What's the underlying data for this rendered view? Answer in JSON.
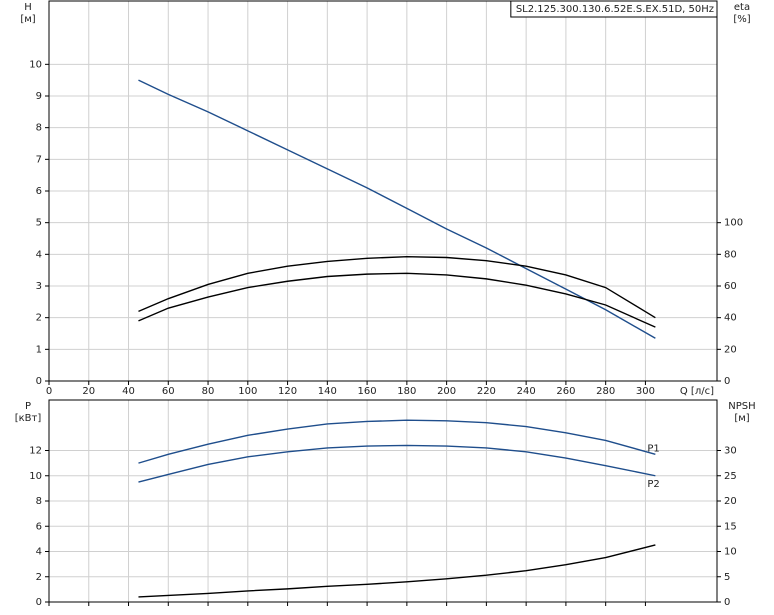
{
  "chart_data": [
    {
      "type": "line",
      "title": "SL2.125.300.130.6.52E.S.EX.51D, 50Hz",
      "ylabel": "H",
      "ylabel_unit": "[м]",
      "y2label": "eta",
      "y2label_unit": "[%]",
      "xlabel": "Q [л/с]",
      "xlim": [
        0,
        336
      ],
      "xticks": [
        0,
        20,
        40,
        60,
        80,
        100,
        120,
        140,
        160,
        180,
        200,
        220,
        240,
        260,
        280,
        300
      ],
      "ylim": [
        0,
        12
      ],
      "yticks": [
        0,
        1,
        2,
        3,
        4,
        5,
        6,
        7,
        8,
        9,
        10
      ],
      "y2lim": [
        0,
        240
      ],
      "y2ticks": [
        0,
        20,
        40,
        60,
        80,
        100
      ],
      "grid": true,
      "x": [
        45,
        60,
        80,
        100,
        120,
        140,
        160,
        180,
        200,
        220,
        240,
        260,
        280,
        305
      ],
      "series": [
        {
          "color": "#1f4e8c",
          "values": [
            9.5,
            9.05,
            8.5,
            7.9,
            7.3,
            6.7,
            6.1,
            5.45,
            4.8,
            4.2,
            3.55,
            2.9,
            2.25,
            1.35
          ]
        },
        {
          "color": "#000000",
          "axis": "y2",
          "values": [
            44,
            52,
            61,
            68,
            72.5,
            75.5,
            77.5,
            78.5,
            78,
            76,
            72.5,
            67,
            59,
            40
          ]
        },
        {
          "color": "#000000",
          "axis": "y2",
          "values": [
            38,
            46,
            53,
            59,
            63,
            66,
            67.5,
            68,
            67,
            64.5,
            60.5,
            55,
            48,
            34
          ]
        }
      ]
    },
    {
      "type": "line",
      "ylabel": "P",
      "ylabel_unit": "[кВт]",
      "y2label": "NPSH",
      "y2label_unit": "[м]",
      "xlim": [
        0,
        336
      ],
      "ylim": [
        0,
        16
      ],
      "yticks": [
        0,
        2,
        4,
        6,
        8,
        10,
        12
      ],
      "y2lim": [
        0,
        40
      ],
      "y2ticks": [
        0,
        5,
        10,
        15,
        20,
        25,
        30
      ],
      "grid": true,
      "x": [
        45,
        60,
        80,
        100,
        120,
        140,
        160,
        180,
        200,
        220,
        240,
        260,
        280,
        305
      ],
      "series": [
        {
          "name": "P1",
          "color": "#1f4e8c",
          "values": [
            11.0,
            11.7,
            12.5,
            13.2,
            13.7,
            14.1,
            14.3,
            14.4,
            14.35,
            14.2,
            13.9,
            13.4,
            12.8,
            11.7
          ]
        },
        {
          "name": "P2",
          "color": "#1f4e8c",
          "values": [
            9.5,
            10.1,
            10.9,
            11.5,
            11.9,
            12.2,
            12.35,
            12.4,
            12.35,
            12.2,
            11.9,
            11.4,
            10.8,
            10.0
          ]
        },
        {
          "color": "#000000",
          "axis": "y2",
          "values": [
            1.0,
            1.3,
            1.7,
            2.2,
            2.6,
            3.1,
            3.5,
            4.0,
            4.6,
            5.3,
            6.2,
            7.4,
            8.8,
            11.3
          ]
        }
      ]
    }
  ]
}
